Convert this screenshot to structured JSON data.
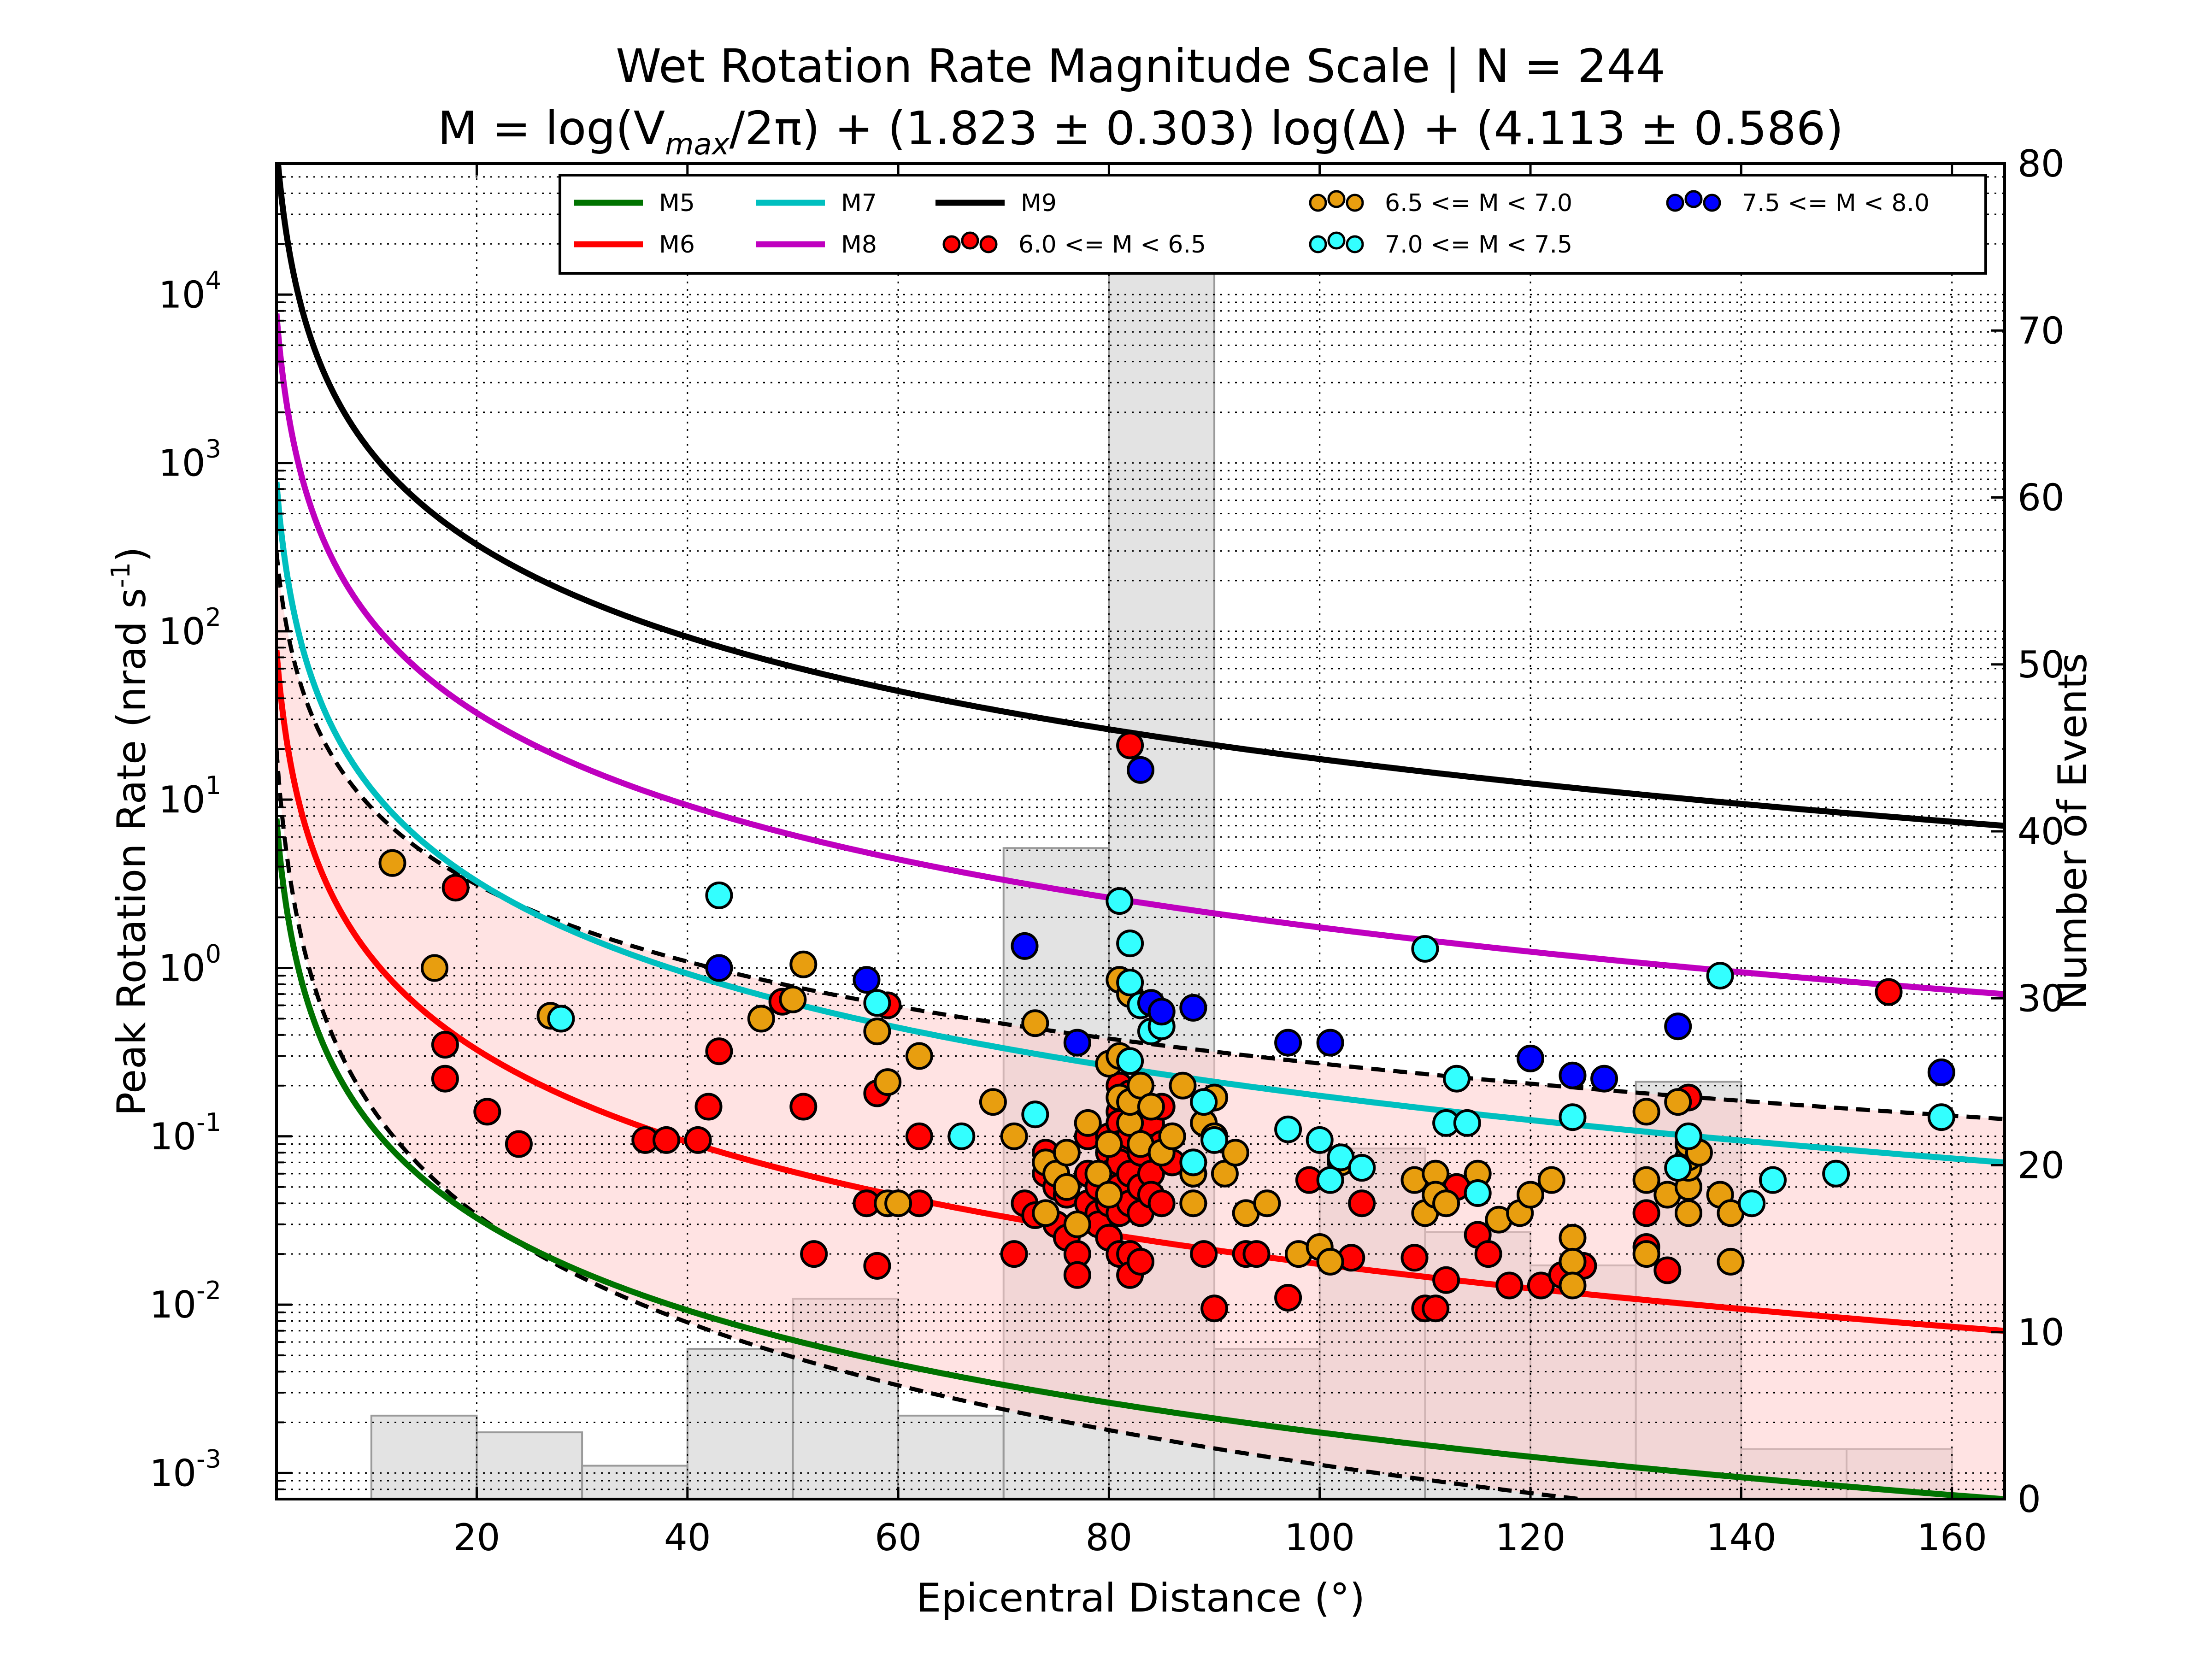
{
  "chart_data": {
    "type": "scatter",
    "title": "Wet Rotation Rate Magnitude Scale | N = 244",
    "subtitle": {
      "pre": "M = log(V",
      "sub": "max",
      "mid": "/2π) + (1.823 ± 0.303) log(Δ) + (4.113 ± 0.586)"
    },
    "xlabel": "Epicentral Distance (°)",
    "ylabel": "Peak Rotation Rate (nrad s",
    "ylabel_sup": "-1",
    "ylabel_end": ")",
    "y2label": "Number of Events",
    "xlim": [
      1,
      165
    ],
    "ylim": [
      0.0007,
      60000
    ],
    "yscale": "log",
    "y2lim": [
      0,
      80
    ],
    "grid": true,
    "legend_position": "top",
    "xticks": [
      "20",
      "40",
      "60",
      "80",
      "100",
      "120",
      "140",
      "160"
    ],
    "xtick_values": [
      20,
      40,
      60,
      80,
      100,
      120,
      140,
      160
    ],
    "yticks": [
      {
        "v": 0.001,
        "base": "10",
        "exp": "-3"
      },
      {
        "v": 0.01,
        "base": "10",
        "exp": "-2"
      },
      {
        "v": 0.1,
        "base": "10",
        "exp": "-1"
      },
      {
        "v": 1,
        "base": "10",
        "exp": "0"
      },
      {
        "v": 10,
        "base": "10",
        "exp": "1"
      },
      {
        "v": 100,
        "base": "10",
        "exp": "2"
      },
      {
        "v": 1000,
        "base": "10",
        "exp": "3"
      },
      {
        "v": 10000,
        "base": "10",
        "exp": "4"
      }
    ],
    "y2ticks": [
      "0",
      "10",
      "20",
      "30",
      "40",
      "50",
      "60",
      "70",
      "80"
    ],
    "y2tick_values": [
      0,
      10,
      20,
      30,
      40,
      50,
      60,
      70,
      80
    ],
    "magnitude_curves": {
      "slope": 1.823,
      "intercept": 4.113,
      "slope_err": 0.303,
      "intercept_err": 0.586,
      "curves": [
        {
          "name": "M5",
          "m": 5,
          "color": "#007300"
        },
        {
          "name": "M6",
          "m": 6,
          "color": "#ff0000"
        },
        {
          "name": "M7",
          "m": 7,
          "color": "#00bfbf"
        },
        {
          "name": "M8",
          "m": 8,
          "color": "#bf00bf"
        },
        {
          "name": "M9",
          "m": 9,
          "color": "#000000"
        }
      ],
      "bounds_m": 6,
      "band_color": "#ffcccc"
    },
    "histogram": {
      "bins": [
        [
          10,
          20
        ],
        [
          20,
          30
        ],
        [
          30,
          40
        ],
        [
          40,
          50
        ],
        [
          50,
          60
        ],
        [
          60,
          70
        ],
        [
          70,
          80
        ],
        [
          80,
          90
        ],
        [
          90,
          100
        ],
        [
          100,
          110
        ],
        [
          110,
          120
        ],
        [
          120,
          130
        ],
        [
          130,
          140
        ],
        [
          140,
          150
        ],
        [
          150,
          160
        ]
      ],
      "counts": [
        5,
        4,
        2,
        9,
        12,
        5,
        39,
        76,
        9,
        21,
        16,
        14,
        25,
        3,
        3
      ],
      "color": "#cccccc"
    },
    "series": [
      {
        "name": "6.0 <= M < 6.5",
        "color": "#ff0000",
        "points": [
          [
            17,
            0.35
          ],
          [
            17,
            0.22
          ],
          [
            18,
            3.0
          ],
          [
            21,
            0.14
          ],
          [
            24,
            0.09
          ],
          [
            36,
            0.095
          ],
          [
            38,
            0.095
          ],
          [
            41,
            0.095
          ],
          [
            42,
            0.15
          ],
          [
            43,
            0.32
          ],
          [
            49,
            0.63
          ],
          [
            51,
            0.15
          ],
          [
            52,
            0.02
          ],
          [
            57,
            0.04
          ],
          [
            58,
            0.017
          ],
          [
            58,
            0.18
          ],
          [
            59,
            0.6
          ],
          [
            62,
            0.1
          ],
          [
            62,
            0.04
          ],
          [
            71,
            0.02
          ],
          [
            72,
            0.04
          ],
          [
            73,
            0.034
          ],
          [
            74,
            0.08
          ],
          [
            74,
            0.06
          ],
          [
            75,
            0.05
          ],
          [
            75,
            0.03
          ],
          [
            76,
            0.045
          ],
          [
            76,
            0.025
          ],
          [
            77,
            0.02
          ],
          [
            77,
            0.015
          ],
          [
            78,
            0.1
          ],
          [
            78,
            0.06
          ],
          [
            78,
            0.04
          ],
          [
            79,
            0.05
          ],
          [
            79,
            0.035
          ],
          [
            79,
            0.03
          ],
          [
            80,
            0.1
          ],
          [
            80,
            0.08
          ],
          [
            80,
            0.06
          ],
          [
            80,
            0.04
          ],
          [
            80,
            0.025
          ],
          [
            81,
            0.2
          ],
          [
            81,
            0.14
          ],
          [
            81,
            0.12
          ],
          [
            81,
            0.09
          ],
          [
            81,
            0.07
          ],
          [
            81,
            0.05
          ],
          [
            81,
            0.035
          ],
          [
            81,
            0.02
          ],
          [
            82,
            0.18
          ],
          [
            82,
            0.1
          ],
          [
            82,
            0.06
          ],
          [
            82,
            0.04
          ],
          [
            82,
            0.02
          ],
          [
            82,
            0.015
          ],
          [
            83,
            0.16
          ],
          [
            83,
            0.08
          ],
          [
            83,
            0.05
          ],
          [
            83,
            0.035
          ],
          [
            83,
            0.018
          ],
          [
            84,
            0.12
          ],
          [
            84,
            0.06
          ],
          [
            84,
            0.045
          ],
          [
            85,
            0.15
          ],
          [
            85,
            0.09
          ],
          [
            85,
            0.04
          ],
          [
            86,
            0.1
          ],
          [
            86,
            0.07
          ],
          [
            88,
            0.06
          ],
          [
            89,
            0.02
          ],
          [
            90,
            0.0095
          ],
          [
            93,
            0.02
          ],
          [
            94,
            0.02
          ],
          [
            97,
            0.011
          ],
          [
            99,
            0.055
          ],
          [
            103,
            0.019
          ],
          [
            104,
            0.04
          ],
          [
            109,
            0.019
          ],
          [
            110,
            0.0095
          ],
          [
            111,
            0.0095
          ],
          [
            112,
            0.014
          ],
          [
            113,
            0.05
          ],
          [
            115,
            0.026
          ],
          [
            116,
            0.02
          ],
          [
            118,
            0.013
          ],
          [
            121,
            0.013
          ],
          [
            123,
            0.015
          ],
          [
            124,
            0.018
          ],
          [
            125,
            0.017
          ],
          [
            131,
            0.035
          ],
          [
            131,
            0.022
          ],
          [
            133,
            0.016
          ],
          [
            135,
            0.17
          ],
          [
            82,
            21.0
          ],
          [
            154,
            0.72
          ]
        ]
      },
      {
        "name": "6.5 <= M < 7.0",
        "color": "#e89e0f",
        "points": [
          [
            12,
            4.2
          ],
          [
            16,
            1.0
          ],
          [
            27,
            0.52
          ],
          [
            47,
            0.5
          ],
          [
            50,
            0.65
          ],
          [
            51,
            1.05
          ],
          [
            58,
            0.42
          ],
          [
            59,
            0.21
          ],
          [
            59,
            0.04
          ],
          [
            60,
            0.04
          ],
          [
            62,
            0.3
          ],
          [
            69,
            0.16
          ],
          [
            71,
            0.1
          ],
          [
            73,
            0.47
          ],
          [
            74,
            0.035
          ],
          [
            74,
            0.07
          ],
          [
            75,
            0.06
          ],
          [
            76,
            0.08
          ],
          [
            76,
            0.05
          ],
          [
            77,
            0.03
          ],
          [
            78,
            0.12
          ],
          [
            79,
            0.06
          ],
          [
            80,
            0.27
          ],
          [
            80,
            0.09
          ],
          [
            80,
            0.045
          ],
          [
            81,
            0.85
          ],
          [
            81,
            0.3
          ],
          [
            81,
            0.17
          ],
          [
            82,
            0.7
          ],
          [
            82,
            0.12
          ],
          [
            82,
            0.16
          ],
          [
            83,
            0.2
          ],
          [
            83,
            0.09
          ],
          [
            84,
            0.15
          ],
          [
            85,
            0.08
          ],
          [
            86,
            0.1
          ],
          [
            87,
            0.2
          ],
          [
            88,
            0.06
          ],
          [
            88,
            0.04
          ],
          [
            89,
            0.12
          ],
          [
            90,
            0.17
          ],
          [
            90,
            0.1
          ],
          [
            91,
            0.06
          ],
          [
            92,
            0.08
          ],
          [
            93,
            0.035
          ],
          [
            95,
            0.04
          ],
          [
            98,
            0.02
          ],
          [
            100,
            0.022
          ],
          [
            101,
            0.018
          ],
          [
            102,
            0.07
          ],
          [
            104,
            0.065
          ],
          [
            109,
            0.055
          ],
          [
            110,
            0.035
          ],
          [
            111,
            0.06
          ],
          [
            111,
            0.045
          ],
          [
            112,
            0.04
          ],
          [
            115,
            0.06
          ],
          [
            117,
            0.032
          ],
          [
            119,
            0.035
          ],
          [
            120,
            0.045
          ],
          [
            122,
            0.055
          ],
          [
            124,
            0.025
          ],
          [
            124,
            0.018
          ],
          [
            124,
            0.013
          ],
          [
            131,
            0.14
          ],
          [
            131,
            0.055
          ],
          [
            131,
            0.02
          ],
          [
            133,
            0.045
          ],
          [
            134,
            0.16
          ],
          [
            135,
            0.035
          ],
          [
            135,
            0.05
          ],
          [
            135,
            0.065
          ],
          [
            135,
            0.075
          ],
          [
            135,
            0.09
          ],
          [
            136,
            0.08
          ],
          [
            138,
            0.045
          ],
          [
            139,
            0.035
          ],
          [
            139,
            0.018
          ]
        ]
      },
      {
        "name": "7.0 <= M < 7.5",
        "color": "#33ffff",
        "points": [
          [
            28,
            0.5
          ],
          [
            43,
            2.7
          ],
          [
            58,
            0.62
          ],
          [
            66,
            0.1
          ],
          [
            73,
            0.135
          ],
          [
            81,
            2.5
          ],
          [
            82,
            1.4
          ],
          [
            82,
            0.82
          ],
          [
            82,
            0.28
          ],
          [
            83,
            0.6
          ],
          [
            84,
            0.42
          ],
          [
            85,
            0.45
          ],
          [
            88,
            0.07
          ],
          [
            89,
            0.16
          ],
          [
            90,
            0.095
          ],
          [
            97,
            0.11
          ],
          [
            100,
            0.095
          ],
          [
            101,
            0.055
          ],
          [
            102,
            0.075
          ],
          [
            104,
            0.065
          ],
          [
            110,
            1.3
          ],
          [
            112,
            0.12
          ],
          [
            113,
            0.22
          ],
          [
            114,
            0.12
          ],
          [
            115,
            0.046
          ],
          [
            124,
            0.13
          ],
          [
            134,
            0.065
          ],
          [
            135,
            0.1
          ],
          [
            141,
            0.04
          ],
          [
            143,
            0.055
          ],
          [
            149,
            0.06
          ],
          [
            138,
            0.9
          ],
          [
            159,
            0.13
          ]
        ]
      },
      {
        "name": "7.5 <= M < 8.0",
        "color": "#0000ff",
        "points": [
          [
            43,
            1.0
          ],
          [
            57,
            0.85
          ],
          [
            72,
            1.35
          ],
          [
            77,
            0.36
          ],
          [
            83,
            15.0
          ],
          [
            84,
            0.62
          ],
          [
            85,
            0.55
          ],
          [
            88,
            0.58
          ],
          [
            97,
            0.36
          ],
          [
            101,
            0.36
          ],
          [
            120,
            0.29
          ],
          [
            124,
            0.23
          ],
          [
            127,
            0.22
          ],
          [
            134,
            0.45
          ],
          [
            159,
            0.24
          ]
        ]
      }
    ],
    "legend": {
      "lines": [
        "M5",
        "M6",
        "M7",
        "M8",
        "M9"
      ],
      "scatter": [
        "6.0 <= M < 6.5",
        "6.5 <= M < 7.0",
        "7.0 <= M < 7.5",
        "7.5 <= M < 8.0"
      ]
    }
  }
}
